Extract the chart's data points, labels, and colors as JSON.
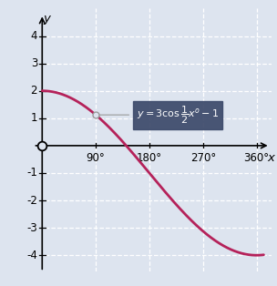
{
  "xlabel": "x",
  "ylabel": "y",
  "xlim": [
    -15,
    385
  ],
  "ylim": [
    -4.6,
    5.0
  ],
  "xticks": [
    90,
    180,
    270,
    360
  ],
  "xtick_labels": [
    "90°",
    "180°",
    "270°",
    "360°"
  ],
  "yticks": [
    -4,
    -3,
    -2,
    -1,
    1,
    2,
    3,
    4
  ],
  "curve_color": "#b5225a",
  "curve_linewidth": 2.0,
  "background_color": "#dde4ef",
  "grid_color": "#ffffff",
  "grid_linestyle": "--",
  "annotation_box_color": "#3d4a6b",
  "annotation_text_color": "#ffffff",
  "x_start": 0,
  "x_end": 372,
  "arrow_line_color": "#999999",
  "tick_fontsize": 8.5
}
